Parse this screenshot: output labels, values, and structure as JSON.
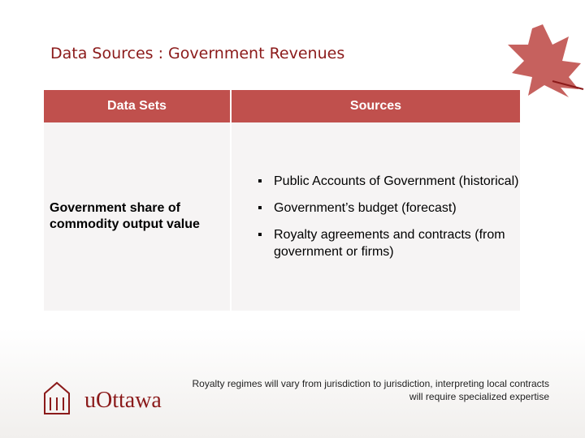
{
  "title": "Data Sources :  Government Revenues",
  "table": {
    "headers": [
      "Data Sets",
      "Sources"
    ],
    "rows": [
      [
        "Government share of commodity output value",
        [
          "Public Accounts of Government (historical)",
          "Government’s budget (forecast)",
          "Royalty agreements and contracts (from government or firms)"
        ]
      ]
    ]
  },
  "note": "Royalty regimes will vary from jurisdiction to jurisdiction, interpreting local contracts will require specialized expertise",
  "logo": "uOttawa"
}
